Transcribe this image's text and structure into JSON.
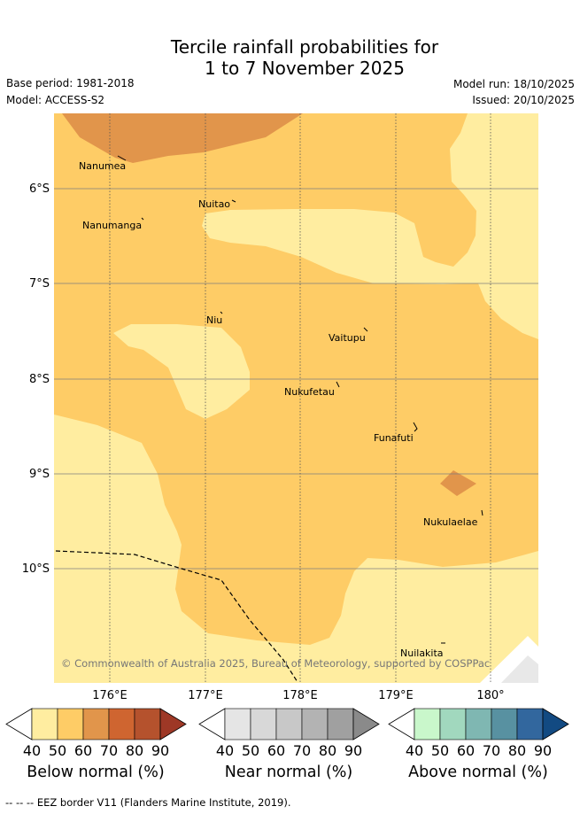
{
  "title": {
    "line1": "Tercile rainfall probabilities for",
    "line2": "1 to 7 November 2025"
  },
  "meta": {
    "base_period": "Base period: 1981-2018",
    "model": "Model: ACCESS-S2",
    "model_run": "Model run: 18/10/2025",
    "issued": "Issued: 20/10/2025"
  },
  "map": {
    "lat_labels": [
      "6°S",
      "7°S",
      "8°S",
      "9°S",
      "10°S"
    ],
    "lon_labels": [
      "176°E",
      "177°E",
      "178°E",
      "179°E",
      "180°"
    ],
    "places": [
      "Nanumea",
      "Nuitao",
      "Nanumanga",
      "Niu",
      "Vaitupu",
      "Nukufetau",
      "Funafuti",
      "Nukulaelae",
      "Nuilakita"
    ],
    "copyright": "© Commonwealth of Australia 2025, Bureau of Meteorology, supported by COSPPac",
    "colors": {
      "below_50": "#ffeda0",
      "below_60": "#fecc66",
      "below_70": "#e1954b",
      "land_outline": "#000000",
      "grid": "#7f7f7f"
    }
  },
  "colorbars": [
    {
      "title": "Below normal (%)",
      "ticks": [
        "40",
        "50",
        "60",
        "70",
        "80",
        "90"
      ],
      "colors": [
        "#ffffff",
        "#ffeda0",
        "#fecc66",
        "#e1954b",
        "#cf6530",
        "#b5522d",
        "#9e3826"
      ]
    },
    {
      "title": "Near normal (%)",
      "ticks": [
        "40",
        "50",
        "60",
        "70",
        "80",
        "90"
      ],
      "colors": [
        "#ffffff",
        "#e5e5e5",
        "#d8d8d8",
        "#c8c8c8",
        "#b3b3b3",
        "#a0a0a0",
        "#8a8a8a"
      ]
    },
    {
      "title": "Above normal (%)",
      "ticks": [
        "40",
        "50",
        "60",
        "70",
        "80",
        "90"
      ],
      "colors": [
        "#ffffff",
        "#c9f7cb",
        "#a1d8be",
        "#7fb7b2",
        "#5891a1",
        "#32679e",
        "#124a82"
      ]
    }
  ],
  "footnote": "-- -- -- EEZ border V11 (Flanders Marine Institute, 2019)."
}
